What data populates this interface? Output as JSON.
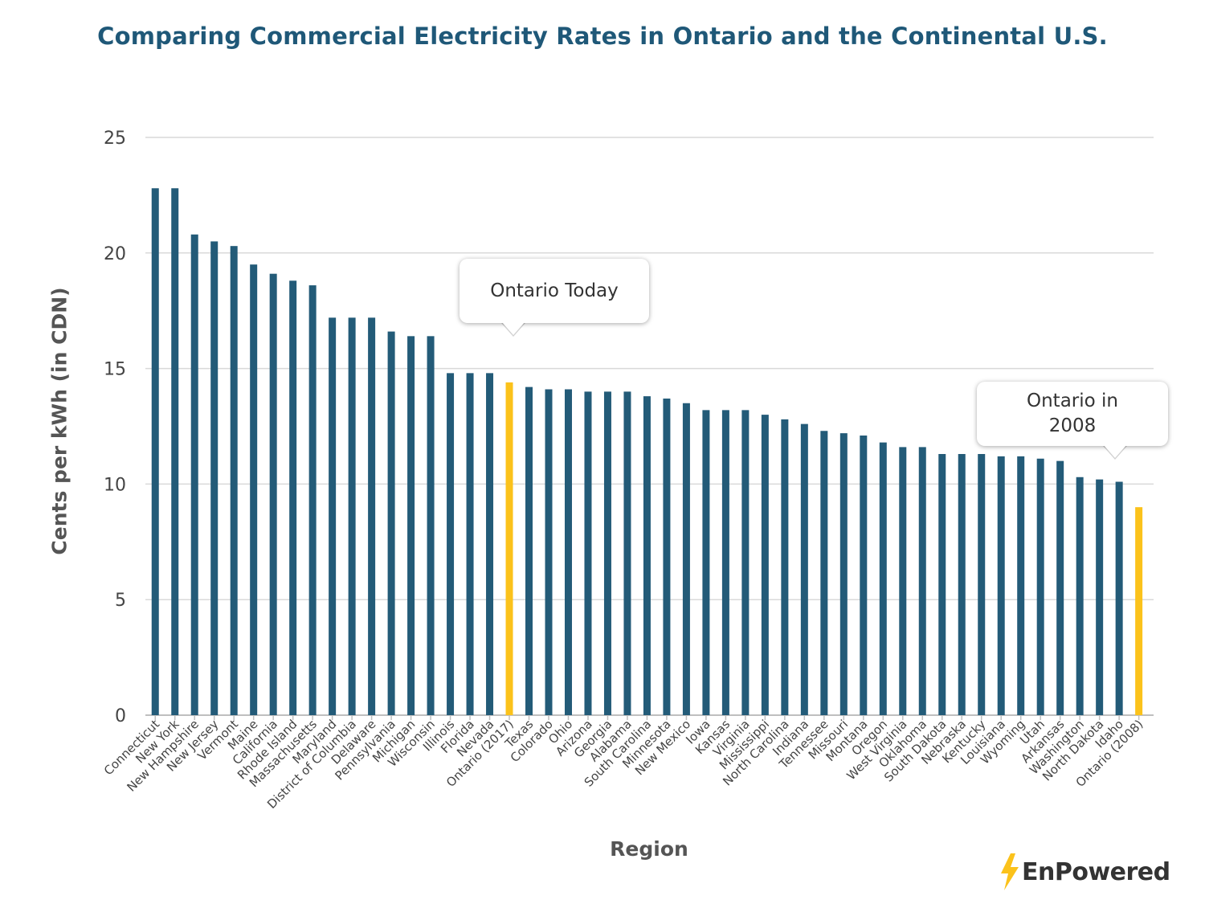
{
  "chart_data": {
    "type": "bar",
    "title": "Comparing Commercial Electricity Rates in Ontario and the Continental U.S.",
    "xlabel": "Region",
    "ylabel": "Cents per kWh (in CDN)",
    "ylim": [
      0,
      25
    ],
    "yticks": [
      0,
      5,
      10,
      15,
      20,
      25
    ],
    "grid": true,
    "bar_color": "#235b78",
    "highlight_color": "#fbc21b",
    "highlighted": [
      "Ontario (2017)",
      "Ontario (2008)"
    ],
    "categories": [
      "Connecticut",
      "New York",
      "New Hampshire",
      "New Jersey",
      "Vermont",
      "Maine",
      "California",
      "Rhode Island",
      "Massachusetts",
      "Maryland",
      "District of Columbia",
      "Delaware",
      "Pennsylvania",
      "Michigan",
      "Wisconsin",
      "Illinois",
      "Florida",
      "Nevada",
      "Ontario (2017)",
      "Texas",
      "Colorado",
      "Ohio",
      "Arizona",
      "Georgia",
      "Alabama",
      "South Carolina",
      "Minnesota",
      "New Mexico",
      "Iowa",
      "Kansas",
      "Virginia",
      "Mississippi",
      "North Carolina",
      "Indiana",
      "Tennessee",
      "Missouri",
      "Montana",
      "Oregon",
      "West Virginia",
      "Oklahoma",
      "South Dakota",
      "Nebraska",
      "Kentucky",
      "Louisiana",
      "Wyoming",
      "Utah",
      "Arkansas",
      "Washington",
      "North Dakota",
      "Idaho",
      "Ontario (2008)"
    ],
    "values": [
      22.8,
      22.8,
      20.8,
      20.5,
      20.3,
      19.5,
      19.1,
      18.8,
      18.6,
      17.2,
      17.2,
      17.2,
      16.6,
      16.4,
      16.4,
      14.8,
      14.8,
      14.8,
      14.4,
      14.2,
      14.1,
      14.1,
      14.0,
      14.0,
      14.0,
      13.8,
      13.7,
      13.5,
      13.2,
      13.2,
      13.2,
      13.0,
      12.8,
      12.6,
      12.3,
      12.2,
      12.1,
      11.8,
      11.6,
      11.6,
      11.3,
      11.3,
      11.3,
      11.2,
      11.2,
      11.1,
      11.0,
      10.3,
      10.2,
      10.1,
      9.0
    ],
    "annotations": [
      {
        "text": "Ontario Today",
        "target": "Ontario (2017)"
      },
      {
        "text": "Ontario in 2008",
        "target": "Ontario (2008)"
      }
    ]
  },
  "logo": {
    "text": "EnPowered",
    "bolt_color": "#fbc21b"
  }
}
